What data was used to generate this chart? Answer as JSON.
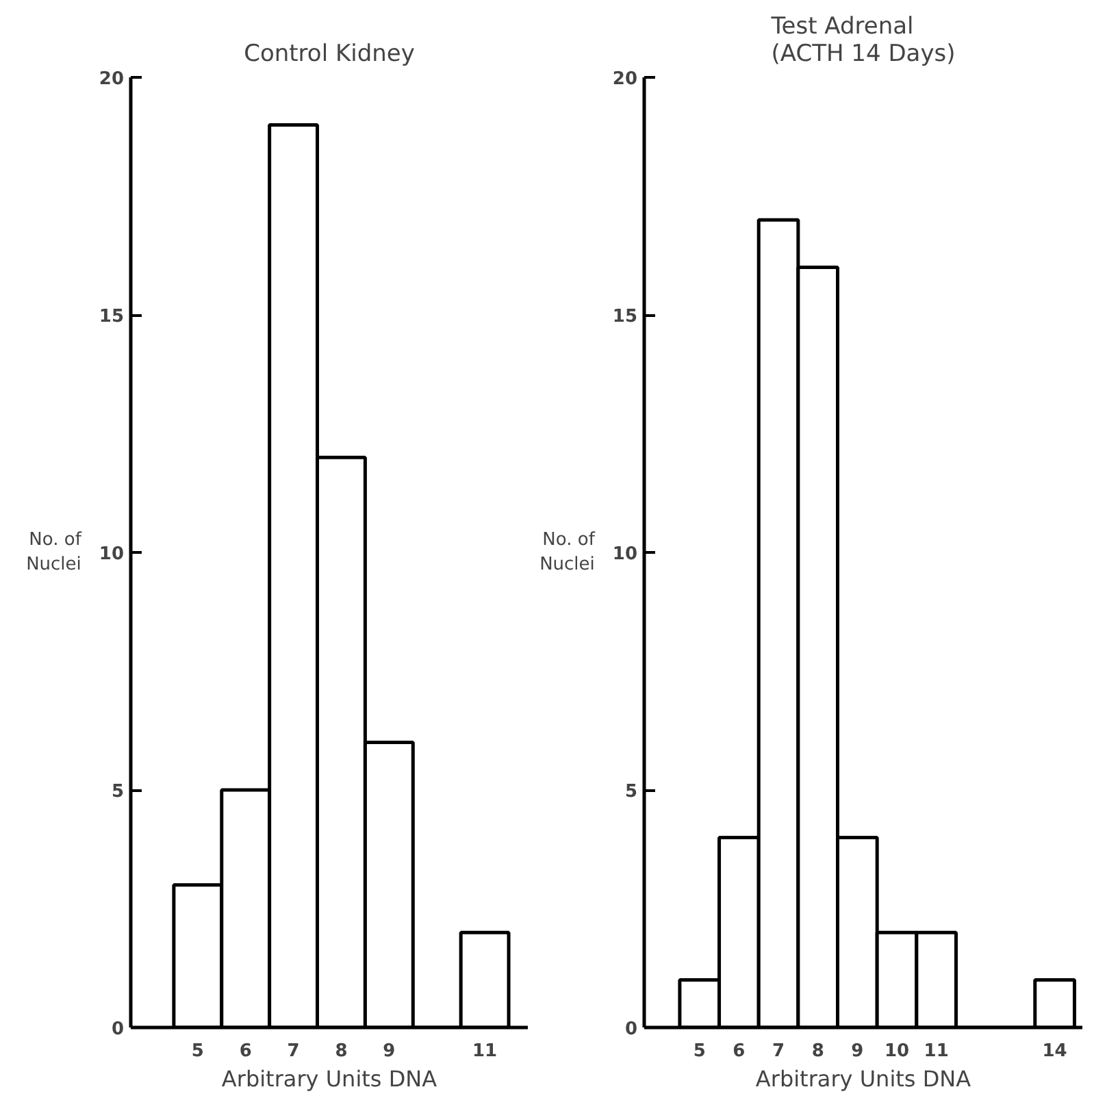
{
  "chart_data": [
    {
      "type": "histogram",
      "title": "Control Kidney",
      "xlabel": "Arbitrary Units DNA",
      "ylabel": "No. of\nNuclei",
      "bins": [
        4.5,
        5.5,
        6.5,
        7.5,
        8.5,
        9.5,
        10.5,
        11.5
      ],
      "values": [
        3,
        5,
        19,
        12,
        6,
        0,
        2
      ],
      "color": "#ffffff",
      "xlim": [
        3.6,
        11.9
      ],
      "xticks": [
        5,
        6,
        7,
        8,
        9,
        11
      ],
      "ylim": [
        0,
        20
      ],
      "yticks": [
        0,
        5,
        10,
        15,
        20
      ],
      "grid": false
    },
    {
      "type": "histogram",
      "title": "Test Adrenal\n(ACTH 14 Days)",
      "xlabel": "Arbitrary Units DNA",
      "ylabel": "No. of\nNuclei",
      "bins": [
        4.5,
        5.5,
        6.5,
        7.5,
        8.5,
        9.5,
        10.5,
        11.5,
        12.5,
        13.5,
        14.5
      ],
      "values": [
        1,
        4,
        17,
        16,
        4,
        2,
        2,
        0,
        0,
        1
      ],
      "color": "#ffffff",
      "xlim": [
        3.6,
        14.7
      ],
      "xticks": [
        5,
        6,
        7,
        8,
        9,
        10,
        11,
        14
      ],
      "ylim": [
        0,
        20
      ],
      "yticks": [
        0,
        5,
        10,
        15,
        20
      ],
      "grid": false
    }
  ]
}
